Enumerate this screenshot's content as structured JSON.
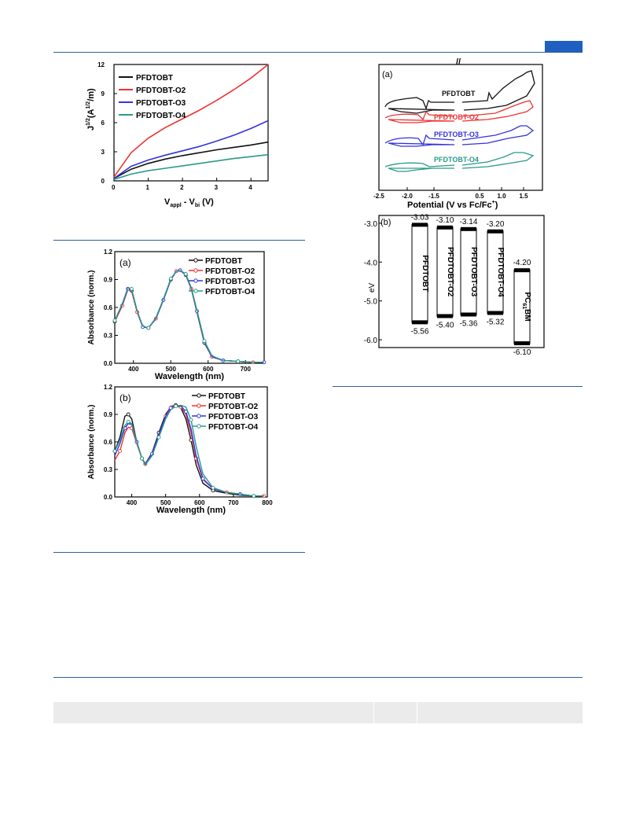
{
  "page": {
    "accent": "#1f5fbf",
    "rule_color": "#2f5f9f"
  },
  "jv_chart": {
    "chart_data": {
      "type": "line",
      "xlabel": "V_appl - V_bi (V)",
      "ylabel": "J^1/2 (A^1/2/m)",
      "xlim": [
        0,
        4.5
      ],
      "ylim": [
        0,
        12
      ],
      "xticks": [
        "0",
        "1",
        "2",
        "3",
        "4"
      ],
      "yticks": [
        "0",
        "3",
        "6",
        "9",
        "12"
      ],
      "legend": "top-left",
      "series": [
        {
          "name": "PFDTOBT",
          "color": "#111111",
          "x": [
            0,
            0.5,
            1,
            1.5,
            2,
            2.5,
            3,
            3.5,
            4,
            4.5
          ],
          "y": [
            0.25,
            1.2,
            1.8,
            2.25,
            2.6,
            2.9,
            3.2,
            3.45,
            3.7,
            4.0
          ]
        },
        {
          "name": "PFDTOBT-O2",
          "color": "#ee3333",
          "x": [
            0,
            0.5,
            1,
            1.5,
            2,
            2.5,
            3,
            3.5,
            4,
            4.5
          ],
          "y": [
            0.4,
            2.9,
            4.4,
            5.5,
            6.4,
            7.3,
            8.3,
            9.4,
            10.6,
            12.0
          ]
        },
        {
          "name": "PFDTOBT-O3",
          "color": "#3333dd",
          "x": [
            0,
            0.5,
            1,
            1.5,
            2,
            2.5,
            3,
            3.5,
            4,
            4.5
          ],
          "y": [
            0.25,
            1.5,
            2.15,
            2.65,
            3.1,
            3.55,
            4.1,
            4.7,
            5.4,
            6.2
          ]
        },
        {
          "name": "PFDTOBT-O4",
          "color": "#2a9a8a",
          "x": [
            0,
            0.5,
            1,
            1.5,
            2,
            2.5,
            3,
            3.5,
            4,
            4.5
          ],
          "y": [
            0.15,
            0.7,
            1.05,
            1.3,
            1.55,
            1.8,
            2.05,
            2.3,
            2.5,
            2.7
          ]
        }
      ]
    },
    "title_fmt": {
      "ylabel_main": "J",
      "ylabel_sup1": "1/2",
      "ylabel_mid": "(A",
      "ylabel_sup2": "1/2",
      "ylabel_end": "/m)",
      "xlabel_a": "V",
      "xlabel_sub1": "appl",
      "xlabel_b": " - V",
      "xlabel_sub2": "bi",
      "xlabel_c": " (V)"
    }
  },
  "abs_a": {
    "chart_data": {
      "type": "line",
      "panel_label": "(a)",
      "xlabel": "Wavelength (nm)",
      "ylabel": "Absorbance (norm.)",
      "xlim": [
        350,
        750
      ],
      "ylim": [
        0,
        1.2
      ],
      "xticks": [
        "400",
        "500",
        "600",
        "700"
      ],
      "yticks": [
        "0.0",
        "0.3",
        "0.6",
        "0.9",
        "1.2"
      ],
      "legend": "top-right",
      "series": [
        {
          "name": "PFDTOBT",
          "color": "#111111",
          "x": [
            350,
            370,
            385,
            395,
            410,
            425,
            440,
            460,
            480,
            500,
            515,
            525,
            540,
            555,
            570,
            590,
            610,
            640,
            680,
            720,
            750
          ],
          "y": [
            0.45,
            0.62,
            0.8,
            0.78,
            0.55,
            0.39,
            0.38,
            0.48,
            0.68,
            0.9,
            0.99,
            1.0,
            0.95,
            0.8,
            0.55,
            0.22,
            0.07,
            0.03,
            0.02,
            0.01,
            0.01
          ]
        },
        {
          "name": "PFDTOBT-O2",
          "color": "#ee3333",
          "x": [
            350,
            370,
            385,
            395,
            410,
            425,
            440,
            460,
            480,
            500,
            515,
            525,
            540,
            555,
            570,
            590,
            610,
            640,
            680,
            720,
            750
          ],
          "y": [
            0.45,
            0.62,
            0.79,
            0.78,
            0.55,
            0.39,
            0.38,
            0.48,
            0.68,
            0.9,
            0.99,
            1.0,
            0.95,
            0.8,
            0.56,
            0.23,
            0.07,
            0.03,
            0.02,
            0.01,
            0.01
          ]
        },
        {
          "name": "PFDTOBT-O3",
          "color": "#3333dd",
          "x": [
            350,
            370,
            385,
            395,
            410,
            425,
            440,
            460,
            480,
            500,
            515,
            525,
            540,
            555,
            570,
            590,
            610,
            640,
            680,
            720,
            750
          ],
          "y": [
            0.46,
            0.63,
            0.8,
            0.79,
            0.56,
            0.39,
            0.38,
            0.48,
            0.68,
            0.9,
            0.99,
            1.0,
            0.95,
            0.8,
            0.56,
            0.23,
            0.07,
            0.03,
            0.02,
            0.01,
            0.01
          ]
        },
        {
          "name": "PFDTOBT-O4",
          "color": "#2a9a8a",
          "x": [
            350,
            370,
            385,
            395,
            410,
            425,
            440,
            460,
            480,
            500,
            515,
            525,
            540,
            555,
            570,
            590,
            610,
            640,
            680,
            720,
            750
          ],
          "y": [
            0.46,
            0.64,
            0.81,
            0.8,
            0.56,
            0.4,
            0.38,
            0.49,
            0.69,
            0.91,
            0.99,
            1.0,
            0.96,
            0.81,
            0.57,
            0.24,
            0.08,
            0.03,
            0.02,
            0.01,
            0.01
          ]
        }
      ]
    }
  },
  "abs_b": {
    "chart_data": {
      "type": "line",
      "panel_label": "(b)",
      "xlabel": "Wavelength (nm)",
      "ylabel": "Absorbance (norm.)",
      "xlim": [
        350,
        800
      ],
      "ylim": [
        0,
        1.2
      ],
      "xticks": [
        "400",
        "500",
        "600",
        "700",
        "800"
      ],
      "yticks": [
        "0.0",
        "0.3",
        "0.6",
        "0.9",
        "1.2"
      ],
      "legend": "top-right",
      "series": [
        {
          "name": "PFDTOBT",
          "color": "#111111",
          "x": [
            350,
            365,
            380,
            390,
            400,
            415,
            430,
            440,
            460,
            480,
            500,
            515,
            530,
            545,
            560,
            575,
            590,
            610,
            640,
            680,
            720,
            760,
            790
          ],
          "y": [
            0.5,
            0.65,
            0.88,
            0.9,
            0.85,
            0.6,
            0.42,
            0.36,
            0.48,
            0.7,
            0.9,
            0.98,
            1.0,
            0.97,
            0.85,
            0.62,
            0.35,
            0.15,
            0.07,
            0.04,
            0.02,
            0.01,
            0.01
          ]
        },
        {
          "name": "PFDTOBT-O2",
          "color": "#ee3333",
          "x": [
            350,
            365,
            380,
            390,
            400,
            415,
            430,
            440,
            460,
            480,
            500,
            515,
            530,
            545,
            560,
            575,
            590,
            610,
            640,
            680,
            720,
            760,
            790
          ],
          "y": [
            0.4,
            0.5,
            0.7,
            0.76,
            0.75,
            0.58,
            0.42,
            0.36,
            0.47,
            0.68,
            0.88,
            0.99,
            1.0,
            0.98,
            0.9,
            0.7,
            0.42,
            0.19,
            0.09,
            0.05,
            0.03,
            0.01,
            0.01
          ]
        },
        {
          "name": "PFDTOBT-O3",
          "color": "#3333dd",
          "x": [
            350,
            365,
            380,
            390,
            400,
            415,
            430,
            440,
            460,
            480,
            500,
            515,
            530,
            545,
            560,
            575,
            590,
            610,
            640,
            680,
            720,
            760,
            790
          ],
          "y": [
            0.45,
            0.58,
            0.75,
            0.8,
            0.79,
            0.6,
            0.42,
            0.36,
            0.47,
            0.68,
            0.88,
            0.97,
            1.0,
            0.99,
            0.93,
            0.74,
            0.45,
            0.2,
            0.09,
            0.05,
            0.03,
            0.01,
            0.01
          ]
        },
        {
          "name": "PFDTOBT-O4",
          "color": "#2a9a8a",
          "x": [
            350,
            365,
            380,
            390,
            400,
            415,
            430,
            440,
            460,
            480,
            500,
            515,
            530,
            545,
            560,
            575,
            590,
            610,
            640,
            680,
            720,
            760,
            790
          ],
          "y": [
            0.5,
            0.62,
            0.78,
            0.82,
            0.8,
            0.6,
            0.42,
            0.35,
            0.45,
            0.65,
            0.85,
            0.95,
            0.99,
            1.0,
            0.98,
            0.84,
            0.55,
            0.25,
            0.1,
            0.05,
            0.03,
            0.01,
            0.01
          ]
        }
      ]
    }
  },
  "cv_chart": {
    "chart_data": {
      "type": "line",
      "panel_label": "(a)",
      "xlabel": "Potential (V vs Fc/Fc+)",
      "xlim": [
        -2.5,
        1.7
      ],
      "xticks": [
        "-2.5",
        "-2.0",
        "-1.5",
        "0.5",
        "1.0",
        "1.5"
      ],
      "axis_break": "//",
      "series": [
        {
          "name": "PFDTOBT",
          "color": "#111111"
        },
        {
          "name": "PFDTOBT-O2",
          "color": "#ee3333"
        },
        {
          "name": "PFDTOBT-O3",
          "color": "#3333dd"
        },
        {
          "name": "PFDTOBT-O4",
          "color": "#2a9a8a"
        }
      ]
    },
    "xlabel_a": "Potential (V vs Fc/Fc",
    "xlabel_sup": "+",
    "xlabel_b": ")"
  },
  "energy_chart": {
    "chart_data": {
      "type": "bar",
      "panel_label": "(b)",
      "ylabel": "eV",
      "ylim": [
        -6.2,
        -2.8
      ],
      "yticks": [
        "-3.0",
        "-4.0",
        "-5.0",
        "-6.0"
      ],
      "categories": [
        "PFDTOBT",
        "PFDTOBT-O2",
        "PFDTOBT-O3",
        "PFDTOBT-O4",
        "PC61BM"
      ],
      "lumo": [
        -3.03,
        -3.1,
        -3.14,
        -3.2,
        -4.2
      ],
      "homo": [
        -5.56,
        -5.4,
        -5.36,
        -5.32,
        -6.1
      ],
      "lumo_labels": [
        "-3.03",
        "-3.10",
        "-3.14",
        "-3.20",
        "-4.20"
      ],
      "homo_labels": [
        "-5.56",
        "-5.40",
        "-5.36",
        "-5.32",
        "-6.10"
      ]
    },
    "pcbm_main": "PC",
    "pcbm_sub": "61",
    "pcbm_end": "BM"
  }
}
